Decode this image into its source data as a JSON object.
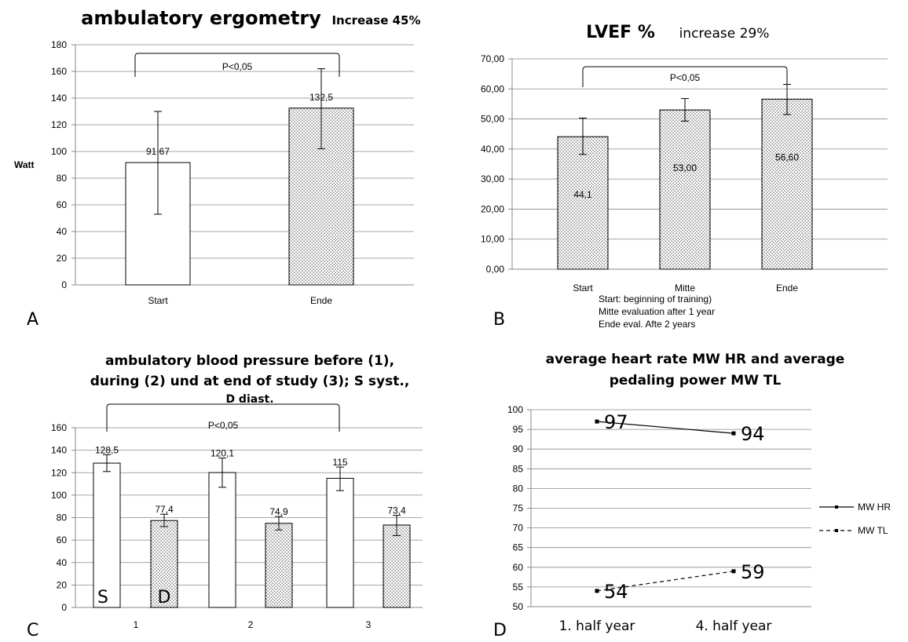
{
  "chart_data": [
    {
      "panel": "A",
      "type": "bar",
      "title": "ambulatory ergometry",
      "subtitle": "Increase 45%",
      "ylabel": "Watt",
      "xlabel": "",
      "ylim": [
        0,
        180
      ],
      "yticks": [
        "0",
        "20",
        "40",
        "60",
        "80",
        "100",
        "120",
        "140",
        "160",
        "180"
      ],
      "categories": [
        "Start",
        "Ende"
      ],
      "values": [
        91.67,
        132.5
      ],
      "value_labels": [
        "91,67",
        "132,5"
      ],
      "error": [
        [
          53,
          130
        ],
        [
          102,
          162
        ]
      ],
      "fills": [
        "white",
        "dotted"
      ],
      "significance": "P<0,05",
      "grid": true
    },
    {
      "panel": "B",
      "type": "bar",
      "title": "LVEF %",
      "subtitle": "increase 29%",
      "xlabel": "",
      "ylabel": "",
      "ylim": [
        0,
        70
      ],
      "yticks": [
        "0,00",
        "10,00",
        "20,00",
        "30,00",
        "40,00",
        "50,00",
        "60,00",
        "70,00"
      ],
      "categories": [
        "Start",
        "Mitte",
        "Ende"
      ],
      "values": [
        44.1,
        53.0,
        56.6
      ],
      "value_labels": [
        "44,1",
        "53,00",
        "56,60"
      ],
      "error": [
        [
          38.2,
          50.3
        ],
        [
          49.3,
          56.8
        ],
        [
          51.5,
          61.5
        ]
      ],
      "fills": [
        "dotted",
        "dotted",
        "dotted"
      ],
      "significance": "P<0,05",
      "notes": [
        "Start: beginning of training)",
        "Mitte evaluation after 1 year",
        "Ende eval. Afte 2 years"
      ],
      "grid": true
    },
    {
      "panel": "C",
      "type": "bar",
      "title_lines": [
        "ambulatory blood pressure before (1),",
        "during (2) und at end of study (3); S syst.,",
        "D diast."
      ],
      "xlabel": "",
      "ylabel": "",
      "ylim": [
        0,
        160
      ],
      "yticks": [
        "0",
        "20",
        "40",
        "60",
        "80",
        "100",
        "120",
        "140",
        "160"
      ],
      "categories": [
        "1",
        "2",
        "3"
      ],
      "series": [
        {
          "values": [
            128.5,
            120.1,
            115
          ],
          "value_labels": [
            "128,5",
            "120,1",
            "115"
          ],
          "error": [
            [
              121,
              136
            ],
            [
              107,
              133
            ],
            [
              104,
              125
            ]
          ],
          "fill": "white"
        },
        {
          "values": [
            77.4,
            74.9,
            73.4
          ],
          "value_labels": [
            "77,4",
            "74,9",
            "73,4"
          ],
          "error": [
            [
              72,
              83
            ],
            [
              69,
              81
            ],
            [
              64,
              82
            ]
          ],
          "fill": "dotted"
        }
      ],
      "in_bar_letters": [
        "S",
        "D"
      ],
      "significance": "P<0,05",
      "grid": true
    },
    {
      "panel": "D",
      "type": "line",
      "title_lines": [
        "average heart rate MW HR and average",
        "pedaling power MW TL"
      ],
      "xlabel": "",
      "ylabel": "",
      "ylim": [
        50,
        100
      ],
      "yticks": [
        "50",
        "55",
        "60",
        "65",
        "70",
        "75",
        "80",
        "85",
        "90",
        "95",
        "100"
      ],
      "categories": [
        "1. half year",
        "4. half year"
      ],
      "series": [
        {
          "name": "MW HR",
          "values": [
            97,
            94
          ],
          "labels": [
            "97",
            "94"
          ],
          "style": "solid"
        },
        {
          "name": "MW TL",
          "values": [
            54,
            59
          ],
          "labels": [
            "54",
            "59"
          ],
          "style": "dashed"
        }
      ],
      "legend": "right",
      "grid": true
    }
  ],
  "panel_letters": [
    "A",
    "B",
    "C",
    "D"
  ],
  "colors": {
    "axis": "#888888",
    "grid": "#888888",
    "bar_outline": "#000000",
    "dot": "#444444"
  }
}
